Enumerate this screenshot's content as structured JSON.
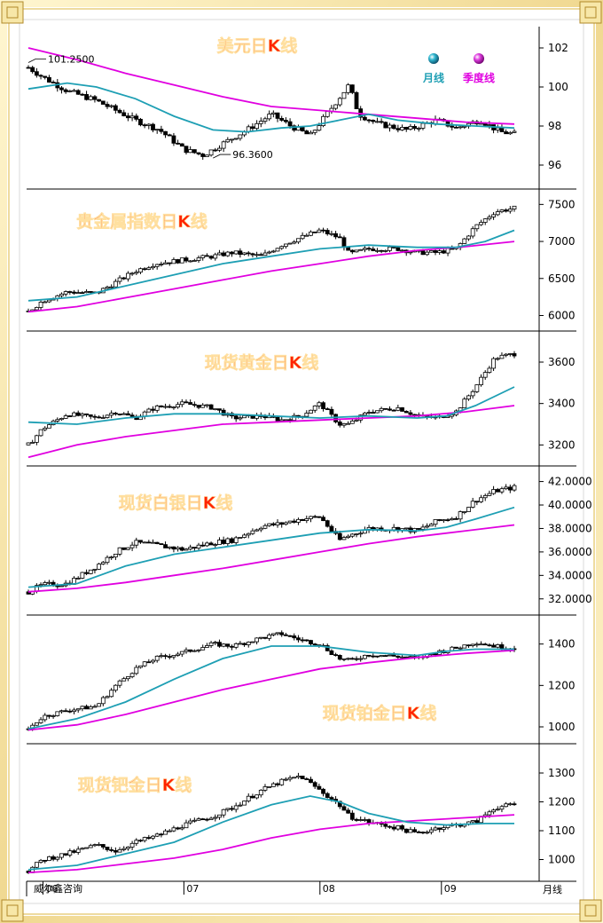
{
  "colors": {
    "frame_gold": "#f0d890",
    "frame_gold_dark": "#b08a2a",
    "title_red": "#ff2200",
    "ma_month": "#1e9fb4",
    "ma_quarter": "#e000e0",
    "candle_up": "#ffffff",
    "candle_down": "#000000"
  },
  "legend": {
    "month": "月线",
    "quarter": "季度线"
  },
  "footer": {
    "source": "威尔鑫咨询",
    "period": "月线"
  },
  "x_axis": {
    "ticks": [
      {
        "label": "06",
        "at": 0.03
      },
      {
        "label": "07",
        "at": 0.32
      },
      {
        "label": "08",
        "at": 0.6
      },
      {
        "label": "09",
        "at": 0.85
      }
    ]
  },
  "chart_data": [
    {
      "type": "candlestick",
      "title": "美元日K线",
      "ylim": [
        95,
        103
      ],
      "yticks": [
        {
          "v": 102,
          "label": "102"
        },
        {
          "v": 100,
          "label": "100"
        },
        {
          "v": 98,
          "label": "98"
        },
        {
          "v": 96,
          "label": "96"
        }
      ],
      "annotations": [
        {
          "label": "101.2500",
          "at": 0.0,
          "value": 101.25
        },
        {
          "label": "96.3600",
          "at": 0.38,
          "value": 96.36
        }
      ],
      "series_close": [
        [
          0,
          101.0
        ],
        [
          0.03,
          100.5
        ],
        [
          0.08,
          99.8
        ],
        [
          0.14,
          99.3
        ],
        [
          0.18,
          98.8
        ],
        [
          0.22,
          98.3
        ],
        [
          0.27,
          97.8
        ],
        [
          0.32,
          96.8
        ],
        [
          0.36,
          96.5
        ],
        [
          0.4,
          97.1
        ],
        [
          0.45,
          97.8
        ],
        [
          0.5,
          98.6
        ],
        [
          0.54,
          98.0
        ],
        [
          0.58,
          97.5
        ],
        [
          0.62,
          98.8
        ],
        [
          0.66,
          100.1
        ],
        [
          0.68,
          98.6
        ],
        [
          0.72,
          98.1
        ],
        [
          0.78,
          97.8
        ],
        [
          0.84,
          98.3
        ],
        [
          0.88,
          97.9
        ],
        [
          0.93,
          98.3
        ],
        [
          0.97,
          97.7
        ],
        [
          1.0,
          97.6
        ]
      ],
      "ma_month": [
        [
          0,
          99.9
        ],
        [
          0.08,
          100.2
        ],
        [
          0.14,
          100.0
        ],
        [
          0.22,
          99.4
        ],
        [
          0.3,
          98.5
        ],
        [
          0.38,
          97.8
        ],
        [
          0.45,
          97.7
        ],
        [
          0.52,
          97.9
        ],
        [
          0.58,
          98.0
        ],
        [
          0.64,
          98.3
        ],
        [
          0.7,
          98.6
        ],
        [
          0.76,
          98.3
        ],
        [
          0.84,
          98.1
        ],
        [
          0.92,
          98.0
        ],
        [
          1.0,
          97.9
        ]
      ],
      "ma_quarter": [
        [
          0,
          102.0
        ],
        [
          0.1,
          101.4
        ],
        [
          0.2,
          100.7
        ],
        [
          0.3,
          100.1
        ],
        [
          0.4,
          99.5
        ],
        [
          0.5,
          99.0
        ],
        [
          0.6,
          98.8
        ],
        [
          0.7,
          98.6
        ],
        [
          0.8,
          98.4
        ],
        [
          0.9,
          98.2
        ],
        [
          1.0,
          98.1
        ]
      ]
    },
    {
      "type": "candlestick",
      "title": "贵金属指数日K线",
      "ylim": [
        5850,
        7600
      ],
      "yticks": [
        {
          "v": 7500,
          "label": "7500"
        },
        {
          "v": 7000,
          "label": "7000"
        },
        {
          "v": 6500,
          "label": "6500"
        },
        {
          "v": 6000,
          "label": "6000"
        }
      ],
      "series_close": [
        [
          0,
          6050
        ],
        [
          0.03,
          6200
        ],
        [
          0.08,
          6320
        ],
        [
          0.14,
          6300
        ],
        [
          0.18,
          6450
        ],
        [
          0.22,
          6600
        ],
        [
          0.26,
          6700
        ],
        [
          0.32,
          6750
        ],
        [
          0.38,
          6800
        ],
        [
          0.42,
          6850
        ],
        [
          0.48,
          6800
        ],
        [
          0.52,
          6950
        ],
        [
          0.56,
          7050
        ],
        [
          0.6,
          7150
        ],
        [
          0.64,
          7050
        ],
        [
          0.66,
          6830
        ],
        [
          0.7,
          6900
        ],
        [
          0.76,
          6900
        ],
        [
          0.8,
          6850
        ],
        [
          0.84,
          6850
        ],
        [
          0.88,
          6900
        ],
        [
          0.92,
          7200
        ],
        [
          0.96,
          7400
        ],
        [
          1.0,
          7450
        ]
      ],
      "ma_month": [
        [
          0,
          6200
        ],
        [
          0.1,
          6250
        ],
        [
          0.2,
          6400
        ],
        [
          0.3,
          6550
        ],
        [
          0.4,
          6700
        ],
        [
          0.5,
          6800
        ],
        [
          0.6,
          6900
        ],
        [
          0.7,
          6950
        ],
        [
          0.8,
          6920
        ],
        [
          0.88,
          6920
        ],
        [
          0.94,
          7000
        ],
        [
          1.0,
          7150
        ]
      ],
      "ma_quarter": [
        [
          0,
          6050
        ],
        [
          0.1,
          6120
        ],
        [
          0.2,
          6240
        ],
        [
          0.3,
          6360
        ],
        [
          0.4,
          6480
        ],
        [
          0.5,
          6600
        ],
        [
          0.6,
          6700
        ],
        [
          0.7,
          6800
        ],
        [
          0.8,
          6880
        ],
        [
          0.9,
          6930
        ],
        [
          1.0,
          7000
        ]
      ]
    },
    {
      "type": "candlestick",
      "title": "现货黄金日K线",
      "ylim": [
        3120,
        3720
      ],
      "yticks": [
        {
          "v": 3600,
          "label": "3600"
        },
        {
          "v": 3400,
          "label": "3400"
        },
        {
          "v": 3200,
          "label": "3200"
        }
      ],
      "series_close": [
        [
          0,
          3200
        ],
        [
          0.03,
          3280
        ],
        [
          0.08,
          3350
        ],
        [
          0.14,
          3330
        ],
        [
          0.18,
          3360
        ],
        [
          0.22,
          3330
        ],
        [
          0.26,
          3380
        ],
        [
          0.32,
          3400
        ],
        [
          0.38,
          3380
        ],
        [
          0.42,
          3330
        ],
        [
          0.48,
          3340
        ],
        [
          0.52,
          3320
        ],
        [
          0.56,
          3340
        ],
        [
          0.6,
          3400
        ],
        [
          0.64,
          3300
        ],
        [
          0.66,
          3300
        ],
        [
          0.7,
          3360
        ],
        [
          0.76,
          3380
        ],
        [
          0.8,
          3340
        ],
        [
          0.84,
          3330
        ],
        [
          0.88,
          3360
        ],
        [
          0.92,
          3480
        ],
        [
          0.96,
          3620
        ],
        [
          1.0,
          3640
        ]
      ],
      "ma_month": [
        [
          0,
          3310
        ],
        [
          0.1,
          3300
        ],
        [
          0.2,
          3330
        ],
        [
          0.3,
          3350
        ],
        [
          0.4,
          3350
        ],
        [
          0.5,
          3340
        ],
        [
          0.6,
          3330
        ],
        [
          0.7,
          3340
        ],
        [
          0.8,
          3330
        ],
        [
          0.86,
          3340
        ],
        [
          0.92,
          3390
        ],
        [
          1.0,
          3480
        ]
      ],
      "ma_quarter": [
        [
          0,
          3140
        ],
        [
          0.1,
          3200
        ],
        [
          0.2,
          3240
        ],
        [
          0.3,
          3270
        ],
        [
          0.4,
          3300
        ],
        [
          0.5,
          3310
        ],
        [
          0.6,
          3320
        ],
        [
          0.7,
          3330
        ],
        [
          0.8,
          3340
        ],
        [
          0.9,
          3360
        ],
        [
          1.0,
          3390
        ]
      ]
    },
    {
      "type": "candlestick",
      "title": "现货白银日K线",
      "ylim": [
        31,
        42.8
      ],
      "yticks": [
        {
          "v": 42,
          "label": "42.0000"
        },
        {
          "v": 40,
          "label": "40.0000"
        },
        {
          "v": 38,
          "label": "38.0000"
        },
        {
          "v": 36,
          "label": "36.0000"
        },
        {
          "v": 34,
          "label": "34.0000"
        },
        {
          "v": 32,
          "label": "32.0000"
        }
      ],
      "series_close": [
        [
          0,
          32.6
        ],
        [
          0.03,
          33.2
        ],
        [
          0.08,
          33.3
        ],
        [
          0.14,
          34.8
        ],
        [
          0.18,
          36.0
        ],
        [
          0.22,
          36.8
        ],
        [
          0.26,
          36.6
        ],
        [
          0.32,
          36.2
        ],
        [
          0.38,
          36.8
        ],
        [
          0.42,
          37.0
        ],
        [
          0.48,
          38.2
        ],
        [
          0.52,
          38.4
        ],
        [
          0.56,
          38.8
        ],
        [
          0.6,
          39.0
        ],
        [
          0.64,
          37.0
        ],
        [
          0.66,
          37.4
        ],
        [
          0.7,
          38.0
        ],
        [
          0.76,
          38.0
        ],
        [
          0.8,
          37.8
        ],
        [
          0.84,
          38.6
        ],
        [
          0.88,
          39.0
        ],
        [
          0.92,
          40.4
        ],
        [
          0.96,
          41.2
        ],
        [
          1.0,
          41.5
        ]
      ],
      "ma_month": [
        [
          0,
          33.0
        ],
        [
          0.1,
          33.3
        ],
        [
          0.2,
          34.8
        ],
        [
          0.3,
          35.8
        ],
        [
          0.4,
          36.4
        ],
        [
          0.5,
          37.0
        ],
        [
          0.6,
          37.6
        ],
        [
          0.7,
          37.9
        ],
        [
          0.8,
          37.8
        ],
        [
          0.86,
          38.1
        ],
        [
          0.92,
          38.8
        ],
        [
          1.0,
          39.8
        ]
      ],
      "ma_quarter": [
        [
          0,
          32.6
        ],
        [
          0.1,
          32.9
        ],
        [
          0.2,
          33.4
        ],
        [
          0.3,
          34.0
        ],
        [
          0.4,
          34.6
        ],
        [
          0.5,
          35.3
        ],
        [
          0.6,
          36.0
        ],
        [
          0.7,
          36.7
        ],
        [
          0.8,
          37.3
        ],
        [
          0.9,
          37.8
        ],
        [
          1.0,
          38.3
        ]
      ]
    },
    {
      "type": "candlestick",
      "title": "现货铂金日K线",
      "ylim": [
        940,
        1510
      ],
      "yticks": [
        {
          "v": 1400,
          "label": "1400"
        },
        {
          "v": 1200,
          "label": "1200"
        },
        {
          "v": 1000,
          "label": "1000"
        }
      ],
      "series_close": [
        [
          0,
          990
        ],
        [
          0.03,
          1050
        ],
        [
          0.08,
          1080
        ],
        [
          0.14,
          1100
        ],
        [
          0.18,
          1200
        ],
        [
          0.22,
          1280
        ],
        [
          0.26,
          1330
        ],
        [
          0.32,
          1360
        ],
        [
          0.38,
          1400
        ],
        [
          0.42,
          1390
        ],
        [
          0.48,
          1430
        ],
        [
          0.52,
          1450
        ],
        [
          0.56,
          1420
        ],
        [
          0.6,
          1400
        ],
        [
          0.64,
          1330
        ],
        [
          0.66,
          1320
        ],
        [
          0.7,
          1350
        ],
        [
          0.76,
          1340
        ],
        [
          0.8,
          1330
        ],
        [
          0.84,
          1360
        ],
        [
          0.88,
          1380
        ],
        [
          0.92,
          1410
        ],
        [
          0.96,
          1390
        ],
        [
          1.0,
          1380
        ]
      ],
      "ma_month": [
        [
          0,
          990
        ],
        [
          0.1,
          1040
        ],
        [
          0.2,
          1120
        ],
        [
          0.3,
          1230
        ],
        [
          0.4,
          1330
        ],
        [
          0.5,
          1390
        ],
        [
          0.6,
          1390
        ],
        [
          0.7,
          1360
        ],
        [
          0.8,
          1345
        ],
        [
          0.86,
          1365
        ],
        [
          0.92,
          1375
        ],
        [
          1.0,
          1375
        ]
      ],
      "ma_quarter": [
        [
          0,
          985
        ],
        [
          0.1,
          1010
        ],
        [
          0.2,
          1060
        ],
        [
          0.3,
          1120
        ],
        [
          0.4,
          1180
        ],
        [
          0.5,
          1230
        ],
        [
          0.6,
          1280
        ],
        [
          0.7,
          1310
        ],
        [
          0.8,
          1335
        ],
        [
          0.9,
          1355
        ],
        [
          1.0,
          1370
        ]
      ]
    },
    {
      "type": "candlestick",
      "title": "现货钯金日K线",
      "ylim": [
        940,
        1380
      ],
      "yticks": [
        {
          "v": 1300,
          "label": "1300"
        },
        {
          "v": 1200,
          "label": "1200"
        },
        {
          "v": 1100,
          "label": "1100"
        },
        {
          "v": 1000,
          "label": "1000"
        }
      ],
      "series_close": [
        [
          0,
          960
        ],
        [
          0.03,
          1000
        ],
        [
          0.08,
          1020
        ],
        [
          0.14,
          1050
        ],
        [
          0.18,
          1030
        ],
        [
          0.22,
          1060
        ],
        [
          0.26,
          1080
        ],
        [
          0.32,
          1120
        ],
        [
          0.38,
          1150
        ],
        [
          0.42,
          1180
        ],
        [
          0.48,
          1240
        ],
        [
          0.52,
          1270
        ],
        [
          0.56,
          1290
        ],
        [
          0.6,
          1240
        ],
        [
          0.64,
          1190
        ],
        [
          0.66,
          1150
        ],
        [
          0.7,
          1130
        ],
        [
          0.76,
          1110
        ],
        [
          0.8,
          1090
        ],
        [
          0.84,
          1110
        ],
        [
          0.88,
          1120
        ],
        [
          0.92,
          1130
        ],
        [
          0.96,
          1180
        ],
        [
          1.0,
          1190
        ]
      ],
      "ma_month": [
        [
          0,
          965
        ],
        [
          0.1,
          980
        ],
        [
          0.2,
          1020
        ],
        [
          0.3,
          1060
        ],
        [
          0.4,
          1130
        ],
        [
          0.5,
          1190
        ],
        [
          0.58,
          1220
        ],
        [
          0.64,
          1200
        ],
        [
          0.7,
          1160
        ],
        [
          0.78,
          1130
        ],
        [
          0.86,
          1120
        ],
        [
          0.94,
          1125
        ],
        [
          1.0,
          1125
        ]
      ],
      "ma_quarter": [
        [
          0,
          955
        ],
        [
          0.1,
          965
        ],
        [
          0.2,
          985
        ],
        [
          0.3,
          1005
        ],
        [
          0.4,
          1035
        ],
        [
          0.5,
          1075
        ],
        [
          0.6,
          1105
        ],
        [
          0.7,
          1125
        ],
        [
          0.8,
          1135
        ],
        [
          0.9,
          1145
        ],
        [
          1.0,
          1155
        ]
      ]
    }
  ]
}
